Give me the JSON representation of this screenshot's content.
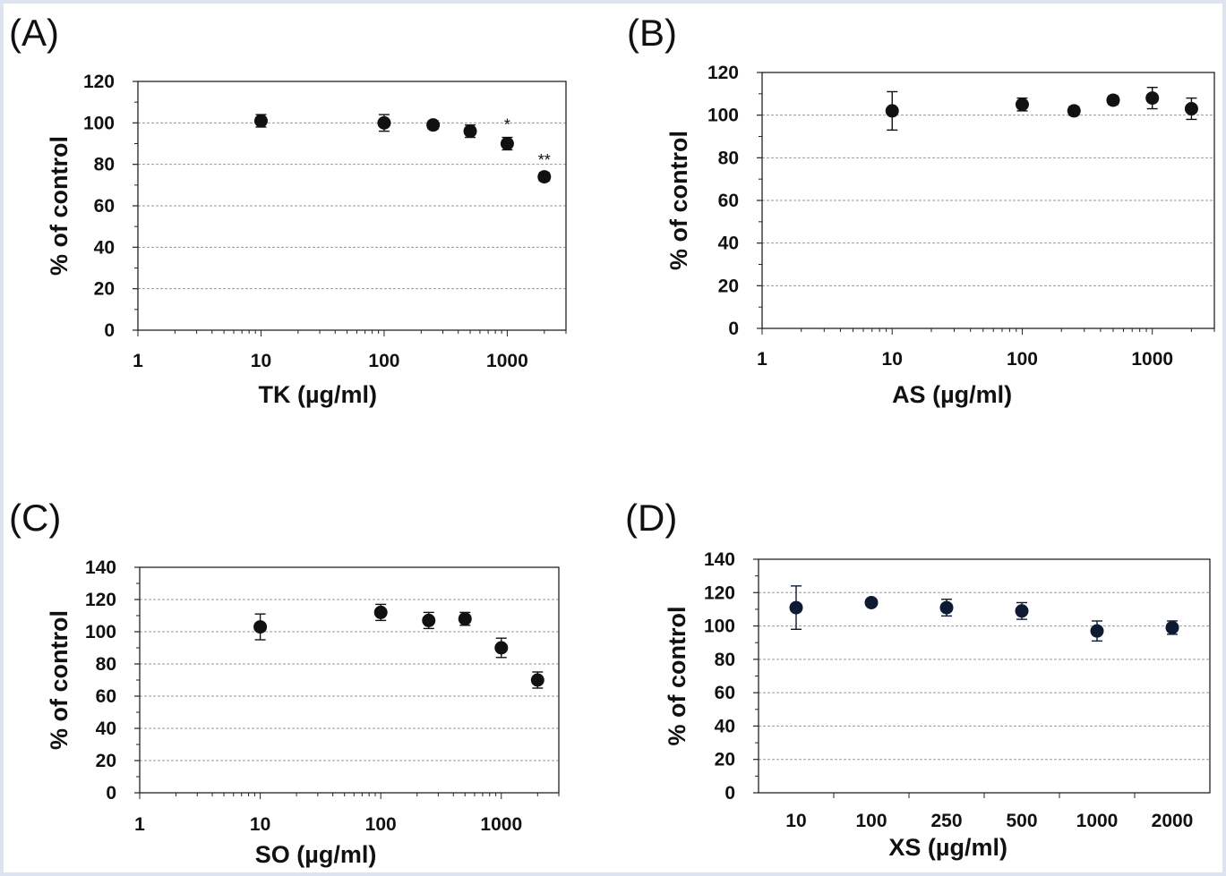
{
  "chart_data": [
    {
      "panel": "(A)",
      "type": "scatter",
      "xlabel": "TK (µg/ml)",
      "ylabel": "% of control",
      "xscale": "log",
      "xlim": [
        1,
        3000
      ],
      "ylim": [
        0,
        120
      ],
      "yticks": [
        0,
        20,
        40,
        60,
        80,
        100,
        120
      ],
      "xticks": [
        1,
        10,
        100,
        1000
      ],
      "xtick_labels": [
        "1",
        "10",
        "100",
        "1000"
      ],
      "grid": true,
      "x": [
        10,
        100,
        250,
        500,
        1000,
        2000
      ],
      "y": [
        101,
        100,
        99,
        96,
        90,
        74
      ],
      "yerr": [
        3,
        4,
        2,
        3,
        3,
        2
      ],
      "annotations": [
        {
          "x": 1000,
          "text": "*"
        },
        {
          "x": 2000,
          "text": "**"
        }
      ]
    },
    {
      "panel": "(B)",
      "type": "scatter",
      "xlabel": "AS (µg/ml)",
      "ylabel": "% of control",
      "xscale": "log",
      "xlim": [
        1,
        3000
      ],
      "ylim": [
        0,
        120
      ],
      "yticks": [
        0,
        20,
        40,
        60,
        80,
        100,
        120
      ],
      "xticks": [
        1,
        10,
        100,
        1000
      ],
      "xtick_labels": [
        "1",
        "10",
        "100",
        "1000"
      ],
      "grid": true,
      "x": [
        10,
        100,
        250,
        500,
        1000,
        2000
      ],
      "y": [
        102,
        105,
        102,
        107,
        108,
        103
      ],
      "yerr": [
        9,
        3,
        2,
        2,
        5,
        5
      ],
      "annotations": []
    },
    {
      "panel": "(C)",
      "type": "scatter",
      "xlabel": "SO (µg/ml)",
      "ylabel": "% of control",
      "xscale": "log",
      "xlim": [
        1,
        3000
      ],
      "ylim": [
        0,
        140
      ],
      "yticks": [
        0,
        20,
        40,
        60,
        80,
        100,
        120,
        140
      ],
      "xticks": [
        1,
        10,
        100,
        1000
      ],
      "xtick_labels": [
        "1",
        "10",
        "100",
        "1000"
      ],
      "grid": true,
      "x": [
        10,
        100,
        250,
        500,
        1000,
        2000
      ],
      "y": [
        103,
        112,
        107,
        108,
        90,
        70
      ],
      "yerr": [
        8,
        5,
        5,
        4,
        6,
        5
      ],
      "annotations": []
    },
    {
      "panel": "(D)",
      "type": "scatter",
      "xlabel": "XS (µg/ml)",
      "ylabel": "% of control",
      "xscale": "category",
      "categories": [
        "10",
        "100",
        "250",
        "500",
        "1000",
        "2000"
      ],
      "ylim": [
        0,
        140
      ],
      "yticks": [
        0,
        20,
        40,
        60,
        80,
        100,
        120,
        140
      ],
      "grid": true,
      "y": [
        111,
        114,
        111,
        109,
        97,
        99
      ],
      "yerr": [
        13,
        2,
        5,
        5,
        6,
        4
      ],
      "annotations": []
    }
  ],
  "colors": {
    "marker": "#111111",
    "marker_d": "#0d1a33",
    "gridline": "#9a9a9a",
    "frame": "#222222",
    "page_border": "#dde3ef"
  }
}
